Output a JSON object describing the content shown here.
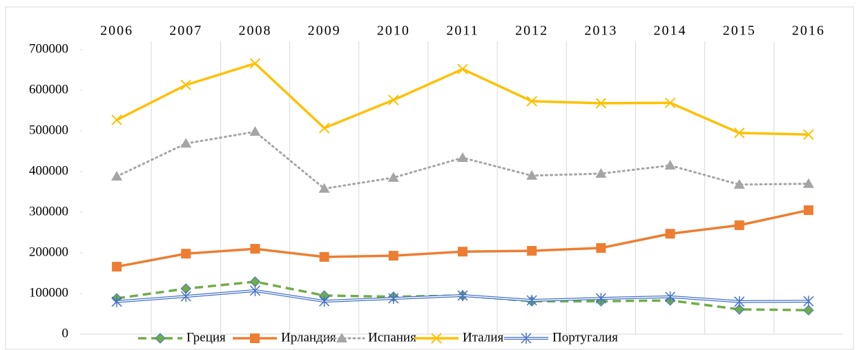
{
  "chart_data": {
    "type": "line",
    "categories": [
      "2006",
      "2007",
      "2008",
      "2009",
      "2010",
      "2011",
      "2012",
      "2013",
      "2014",
      "2015",
      "2016"
    ],
    "series": [
      {
        "name": "Греция",
        "color": "#70ad47",
        "marker": "diamond",
        "dash": "dashed",
        "values": [
          88000,
          112000,
          129000,
          95000,
          92000,
          95000,
          81000,
          81000,
          83000,
          61000,
          59000
        ]
      },
      {
        "name": "Ирландия",
        "color": "#ed7d31",
        "marker": "square",
        "dash": "solid",
        "values": [
          166000,
          198000,
          210000,
          190000,
          193000,
          203000,
          205000,
          212000,
          247000,
          268000,
          305000
        ]
      },
      {
        "name": "Испания",
        "color": "#a5a5a5",
        "marker": "triangle",
        "dash": "dotted",
        "values": [
          388000,
          469000,
          498000,
          358000,
          385000,
          434000,
          390000,
          395000,
          415000,
          368000,
          370000
        ]
      },
      {
        "name": "Италия",
        "color": "#ffc000",
        "marker": "x",
        "dash": "solid",
        "values": [
          527000,
          613000,
          666000,
          507000,
          576000,
          652000,
          573000,
          568000,
          569000,
          495000,
          491000
        ]
      },
      {
        "name": "Португалия",
        "color": "#4472c4",
        "marker": "asterisk",
        "dash": "double",
        "values": [
          80000,
          93000,
          107000,
          81000,
          88000,
          95000,
          83000,
          88000,
          92000,
          80000,
          81000
        ]
      }
    ],
    "ylim": [
      0,
      700000
    ],
    "yticks": [
      0,
      100000,
      200000,
      300000,
      400000,
      500000,
      600000,
      700000
    ],
    "legend": "bottom"
  }
}
